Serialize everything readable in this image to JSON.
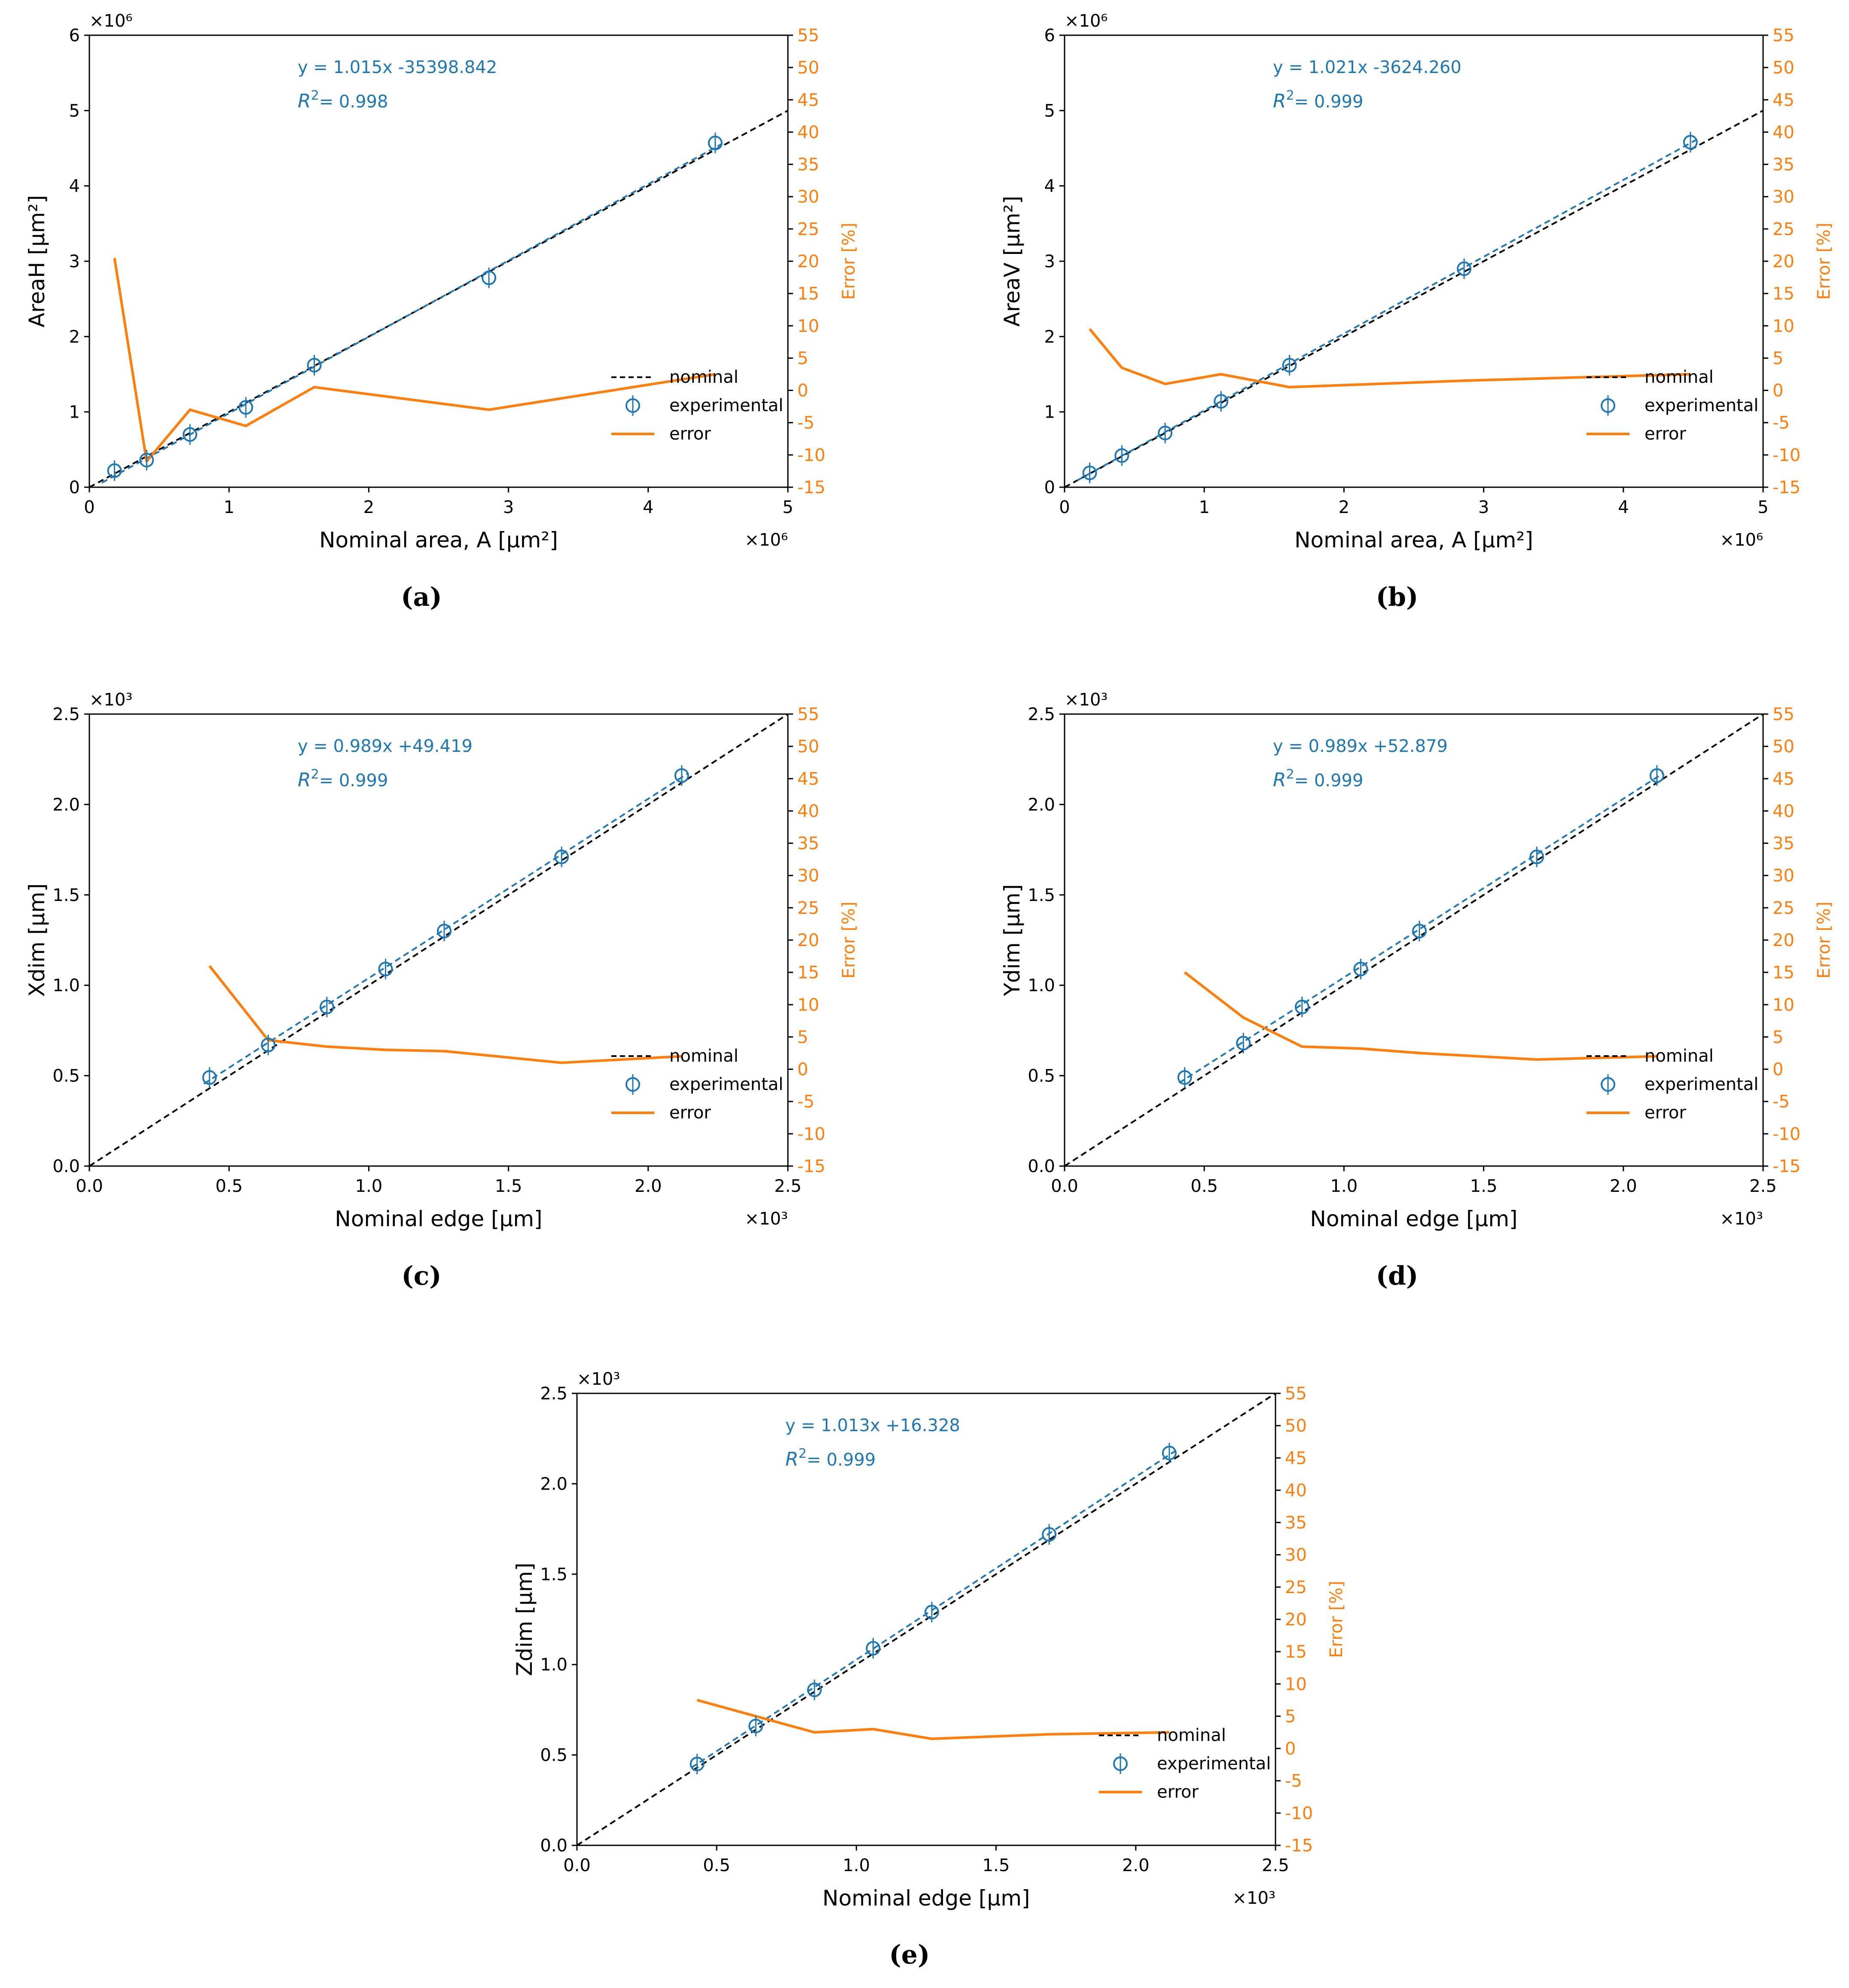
{
  "colors": {
    "experimental": "#1f77b4",
    "error": "#ff7f0e",
    "nominal": "#000000",
    "axis": "#000000"
  },
  "legend": {
    "nominal": "nominal",
    "experimental": "experimental",
    "error": "error"
  },
  "right_axis": {
    "label": "Error [%]",
    "ylim": [
      -15,
      55
    ],
    "ticks": [
      -15,
      -10,
      -5,
      0,
      5,
      10,
      15,
      20,
      25,
      30,
      35,
      40,
      45,
      50,
      55
    ]
  },
  "chart_data": [
    {
      "type": "scatter",
      "caption": "(a)",
      "xlabel": "Nominal area, A [μm²]",
      "ylabel": "AreaH [μm²]",
      "x_multiplier": "×10⁶",
      "y_multiplier": "×10⁶",
      "xlim": [
        0,
        5
      ],
      "ylim": [
        0,
        6
      ],
      "xticks": [
        "0",
        "1",
        "2",
        "3",
        "4",
        "5"
      ],
      "yticks": [
        "0",
        "1",
        "2",
        "3",
        "4",
        "5",
        "6"
      ],
      "fit_equation": "y = 1.015x -35398.842",
      "r2_text": "= 0.998",
      "experimental_x": [
        0.18,
        0.41,
        0.72,
        1.12,
        1.61,
        2.86,
        4.48
      ],
      "experimental_y": [
        0.22,
        0.36,
        0.7,
        1.06,
        1.62,
        2.78,
        4.57
      ],
      "fit_line": {
        "x": [
          0.09,
          4.53
        ],
        "y": [
          0.06,
          4.56
        ]
      },
      "nominal_line": {
        "x": [
          0,
          5
        ],
        "y": [
          0,
          5
        ]
      },
      "error_x": [
        0.18,
        0.41,
        0.72,
        1.12,
        1.61,
        2.86,
        4.48
      ],
      "error_y": [
        20.5,
        -11.0,
        -3.0,
        -5.5,
        0.5,
        -3.0,
        2.5
      ]
    },
    {
      "type": "scatter",
      "caption": "(b)",
      "xlabel": "Nominal area, A [μm²]",
      "ylabel": "AreaV [μm²]",
      "x_multiplier": "×10⁶",
      "y_multiplier": "×10⁶",
      "xlim": [
        0,
        5
      ],
      "ylim": [
        0,
        6
      ],
      "xticks": [
        "0",
        "1",
        "2",
        "3",
        "4",
        "5"
      ],
      "yticks": [
        "0",
        "1",
        "2",
        "3",
        "4",
        "5",
        "6"
      ],
      "fit_equation": "y = 1.021x -3624.260",
      "r2_text": "= 0.999",
      "experimental_x": [
        0.18,
        0.41,
        0.72,
        1.12,
        1.61,
        2.86,
        4.48
      ],
      "experimental_y": [
        0.19,
        0.42,
        0.72,
        1.14,
        1.62,
        2.9,
        4.58
      ],
      "fit_line": {
        "x": [
          0.09,
          4.53
        ],
        "y": [
          0.09,
          4.62
        ]
      },
      "nominal_line": {
        "x": [
          0,
          5
        ],
        "y": [
          0,
          5
        ]
      },
      "error_x": [
        0.18,
        0.41,
        0.72,
        1.12,
        1.61,
        2.86,
        4.48
      ],
      "error_y": [
        9.5,
        3.5,
        1.0,
        2.5,
        0.5,
        1.5,
        2.5
      ]
    },
    {
      "type": "scatter",
      "caption": "(c)",
      "xlabel": "Nominal edge [μm]",
      "ylabel": "Xdim [μm]",
      "x_multiplier": "×10³",
      "y_multiplier": "×10³",
      "xlim": [
        0,
        2.5
      ],
      "ylim": [
        0,
        2.5
      ],
      "xticks": [
        "0.0",
        "0.5",
        "1.0",
        "1.5",
        "2.0",
        "2.5"
      ],
      "yticks": [
        "0.0",
        "0.5",
        "1.0",
        "1.5",
        "2.0",
        "2.5"
      ],
      "fit_equation": "y = 0.989x +49.419",
      "r2_text": "= 0.999",
      "experimental_x": [
        0.43,
        0.64,
        0.85,
        1.06,
        1.27,
        1.69,
        2.12
      ],
      "experimental_y": [
        0.49,
        0.67,
        0.88,
        1.09,
        1.3,
        1.71,
        2.16
      ],
      "fit_line": {
        "x": [
          0.41,
          2.14
        ],
        "y": [
          0.455,
          2.17
        ]
      },
      "nominal_line": {
        "x": [
          0,
          2.5
        ],
        "y": [
          0,
          2.5
        ]
      },
      "error_x": [
        0.43,
        0.64,
        0.85,
        1.06,
        1.27,
        1.69,
        2.12
      ],
      "error_y": [
        16.0,
        4.5,
        3.5,
        3.0,
        2.8,
        1.0,
        2.0
      ]
    },
    {
      "type": "scatter",
      "caption": "(d)",
      "xlabel": "Nominal edge [μm]",
      "ylabel": "Ydim [μm]",
      "x_multiplier": "×10³",
      "y_multiplier": "×10³",
      "xlim": [
        0,
        2.5
      ],
      "ylim": [
        0,
        2.5
      ],
      "xticks": [
        "0.0",
        "0.5",
        "1.0",
        "1.5",
        "2.0",
        "2.5"
      ],
      "yticks": [
        "0.0",
        "0.5",
        "1.0",
        "1.5",
        "2.0",
        "2.5"
      ],
      "fit_equation": "y = 0.989x +52.879",
      "r2_text": "= 0.999",
      "experimental_x": [
        0.43,
        0.64,
        0.85,
        1.06,
        1.27,
        1.69,
        2.12
      ],
      "experimental_y": [
        0.49,
        0.68,
        0.88,
        1.09,
        1.3,
        1.71,
        2.16
      ],
      "fit_line": {
        "x": [
          0.41,
          2.14
        ],
        "y": [
          0.46,
          2.17
        ]
      },
      "nominal_line": {
        "x": [
          0,
          2.5
        ],
        "y": [
          0,
          2.5
        ]
      },
      "error_x": [
        0.43,
        0.64,
        0.85,
        1.06,
        1.27,
        1.69,
        2.12
      ],
      "error_y": [
        15.0,
        8.0,
        3.5,
        3.2,
        2.5,
        1.5,
        2.0
      ]
    },
    {
      "type": "scatter",
      "caption": "(e)",
      "xlabel": "Nominal edge [μm]",
      "ylabel": "Zdim [μm]",
      "x_multiplier": "×10³",
      "y_multiplier": "×10³",
      "xlim": [
        0,
        2.5
      ],
      "ylim": [
        0,
        2.5
      ],
      "xticks": [
        "0.0",
        "0.5",
        "1.0",
        "1.5",
        "2.0",
        "2.5"
      ],
      "yticks": [
        "0.0",
        "0.5",
        "1.0",
        "1.5",
        "2.0",
        "2.5"
      ],
      "fit_equation": "y = 1.013x +16.328",
      "r2_text": "= 0.999",
      "experimental_x": [
        0.43,
        0.64,
        0.85,
        1.06,
        1.27,
        1.69,
        2.12
      ],
      "experimental_y": [
        0.45,
        0.66,
        0.86,
        1.09,
        1.29,
        1.72,
        2.17
      ],
      "fit_line": {
        "x": [
          0.41,
          2.14
        ],
        "y": [
          0.43,
          2.18
        ]
      },
      "nominal_line": {
        "x": [
          0,
          2.5
        ],
        "y": [
          0,
          2.5
        ]
      },
      "error_x": [
        0.43,
        0.64,
        0.85,
        1.06,
        1.27,
        1.69,
        2.12
      ],
      "error_y": [
        7.5,
        5.0,
        2.5,
        3.0,
        1.5,
        2.2,
        2.5
      ]
    }
  ]
}
